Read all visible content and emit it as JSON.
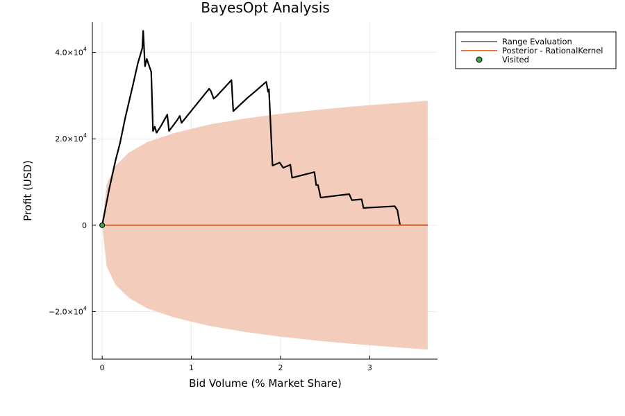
{
  "chart_data": {
    "type": "line",
    "title": "BayesOpt Analysis",
    "xlabel": "Bid Volume (% Market Share)",
    "ylabel": "Profit (USD)",
    "xlim": [
      -0.11,
      3.76
    ],
    "ylim": [
      -31000,
      47000
    ],
    "x_ticks": [
      0,
      1,
      2,
      3
    ],
    "x_tick_labels": [
      "0",
      "1",
      "2",
      "3"
    ],
    "y_ticks": [
      -20000,
      0,
      20000,
      40000
    ],
    "y_tick_labels": [
      {
        "mantissa": "−2.0×10",
        "exp": "4"
      },
      {
        "mantissa": "0",
        "exp": ""
      },
      {
        "mantissa": "2.0×10",
        "exp": "4"
      },
      {
        "mantissa": "4.0×10",
        "exp": "4"
      }
    ],
    "grid": true,
    "legend_position": "top-right",
    "series": [
      {
        "name": "Range Evaluation",
        "kind": "line",
        "color": "#000000",
        "points": [
          [
            0.0,
            0
          ],
          [
            0.08,
            8500
          ],
          [
            0.15,
            15000
          ],
          [
            0.2,
            19000
          ],
          [
            0.26,
            25000
          ],
          [
            0.34,
            32000
          ],
          [
            0.4,
            37500
          ],
          [
            0.45,
            41000
          ],
          [
            0.46,
            45000
          ],
          [
            0.48,
            36800
          ],
          [
            0.5,
            38500
          ],
          [
            0.55,
            35500
          ],
          [
            0.57,
            21800
          ],
          [
            0.59,
            22800
          ],
          [
            0.61,
            21400
          ],
          [
            0.66,
            23000
          ],
          [
            0.73,
            25600
          ],
          [
            0.75,
            21800
          ],
          [
            0.84,
            24300
          ],
          [
            0.87,
            25300
          ],
          [
            0.89,
            23700
          ],
          [
            1.2,
            31600
          ],
          [
            1.22,
            31000
          ],
          [
            1.25,
            29300
          ],
          [
            1.28,
            29800
          ],
          [
            1.45,
            33600
          ],
          [
            1.47,
            26400
          ],
          [
            1.63,
            29500
          ],
          [
            1.7,
            30700
          ],
          [
            1.84,
            33200
          ],
          [
            1.86,
            30900
          ],
          [
            1.87,
            31500
          ],
          [
            1.91,
            13800
          ],
          [
            1.99,
            14500
          ],
          [
            2.03,
            13300
          ],
          [
            2.11,
            14000
          ],
          [
            2.13,
            11000
          ],
          [
            2.38,
            12300
          ],
          [
            2.4,
            9300
          ],
          [
            2.42,
            9300
          ],
          [
            2.45,
            6400
          ],
          [
            2.77,
            7200
          ],
          [
            2.8,
            5800
          ],
          [
            2.91,
            6000
          ],
          [
            2.93,
            4000
          ],
          [
            3.28,
            4400
          ],
          [
            3.31,
            3500
          ],
          [
            3.34,
            0
          ],
          [
            3.65,
            0
          ]
        ]
      },
      {
        "name": "Posterior - RationalKernel",
        "kind": "line_with_band",
        "color": "#e8753f",
        "band_color": "#f2c6b5",
        "mean": [
          [
            0.0,
            0
          ],
          [
            3.65,
            0
          ]
        ],
        "band": [
          [
            0.0,
            0
          ],
          [
            0.05,
            9500
          ],
          [
            0.15,
            13800
          ],
          [
            0.3,
            16800
          ],
          [
            0.5,
            19200
          ],
          [
            0.8,
            21300
          ],
          [
            1.2,
            23300
          ],
          [
            1.6,
            24700
          ],
          [
            2.0,
            25800
          ],
          [
            2.5,
            26900
          ],
          [
            3.0,
            27800
          ],
          [
            3.65,
            28800
          ]
        ]
      },
      {
        "name": "Visited",
        "kind": "scatter",
        "color": "#3da44d",
        "points": [
          [
            0.0,
            0
          ]
        ]
      }
    ]
  }
}
